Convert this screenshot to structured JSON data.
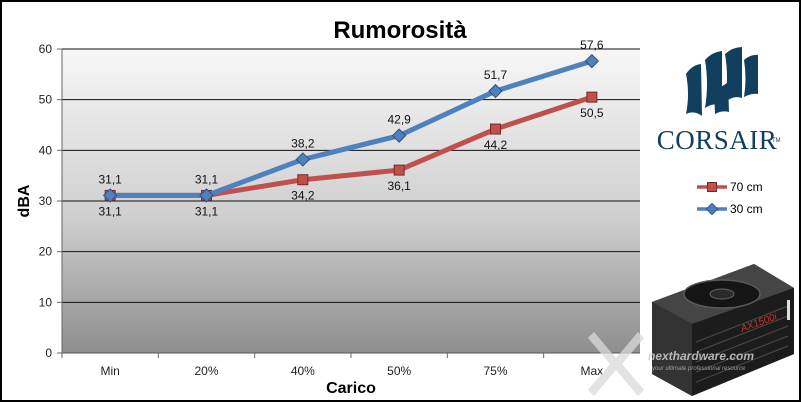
{
  "chart_data": {
    "type": "line",
    "title": "Rumorosità",
    "xlabel": "Carico",
    "ylabel": "dBA",
    "categories": [
      "Min",
      "20%",
      "40%",
      "50%",
      "75%",
      "Max"
    ],
    "ylim": [
      0,
      60
    ],
    "yticks": [
      "0",
      "10",
      "20",
      "30",
      "40",
      "50",
      "60"
    ],
    "grid": true,
    "legend_position": "right",
    "series": [
      {
        "name": "70 cm",
        "color": "#c0504d",
        "marker": "square",
        "values": [
          31.1,
          31.1,
          34.2,
          36.1,
          44.2,
          50.5
        ],
        "labels": [
          "31,1",
          "31,1",
          "34,2",
          "36,1",
          "44,2",
          "50,5"
        ]
      },
      {
        "name": "30 cm",
        "color": "#4f81bd",
        "marker": "diamond",
        "values": [
          31.1,
          31.1,
          38.2,
          42.9,
          51.7,
          57.6
        ],
        "labels": [
          "31,1",
          "31,1",
          "38,2",
          "42,9",
          "51,7",
          "57,6"
        ]
      }
    ]
  },
  "brand": {
    "name": "CORSAIR",
    "trademark": "TM",
    "color": "#123f5d"
  },
  "product": {
    "model_label": "AX1500i"
  },
  "watermark": {
    "text": "nexthardware.com",
    "subtext": "your ultimate professional resource"
  }
}
